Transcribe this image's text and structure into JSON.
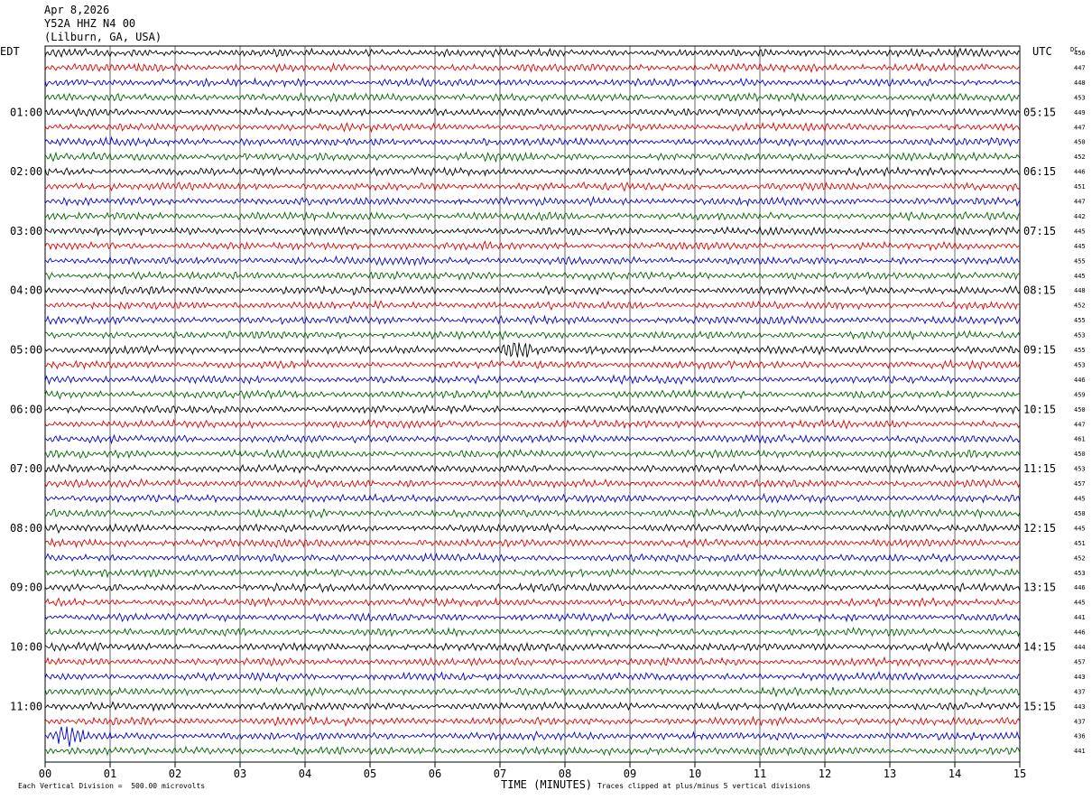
{
  "header": {
    "date": "Apr 8,2026",
    "station": "Y52A HHZ N4 00",
    "location": "(Lilburn, GA, USA)"
  },
  "chart_data": {
    "type": "line",
    "title": "Apr 8,2026",
    "xlabel": "TIME (MINUTES)",
    "ylabel": "",
    "left_timezone": "EDT",
    "right_timezone": "UTC",
    "dc_label": "DC",
    "x_ticks": [
      "00",
      "01",
      "02",
      "03",
      "04",
      "05",
      "06",
      "07",
      "08",
      "09",
      "10",
      "11",
      "12",
      "13",
      "14",
      "15"
    ],
    "xlim": [
      0,
      15
    ],
    "left_hour_labels": [
      "01:00",
      "02:00",
      "03:00",
      "04:00",
      "05:00",
      "06:00",
      "07:00",
      "08:00",
      "09:00",
      "10:00",
      "11:00"
    ],
    "right_hour_labels": [
      "05:15",
      "06:15",
      "07:15",
      "08:15",
      "09:15",
      "10:15",
      "11:15",
      "12:15",
      "13:15",
      "14:15",
      "15:15"
    ],
    "trace_colors": [
      "#000000",
      "#e00000",
      "#0000d0",
      "#006400"
    ],
    "dc_offsets": [
      456,
      447,
      448,
      453,
      449,
      447,
      450,
      452,
      446,
      451,
      447,
      442,
      445,
      445,
      455,
      445,
      448,
      452,
      455,
      453,
      455,
      453,
      446,
      459,
      450,
      447,
      461,
      450,
      453,
      457,
      445,
      450,
      445,
      451,
      452,
      453,
      446,
      445,
      441,
      446,
      444,
      457,
      443,
      437,
      443,
      437,
      436,
      441
    ],
    "events": [
      {
        "trace": 20,
        "minute": 7.3,
        "note": "burst"
      },
      {
        "trace": 46,
        "minute": 0.35,
        "note": "burst"
      }
    ]
  },
  "footer": {
    "scale_note": "Each Vertical Division =  500.00 microvolts",
    "clip_note": "Traces clipped at plus/minus 5 vertical divisions"
  }
}
